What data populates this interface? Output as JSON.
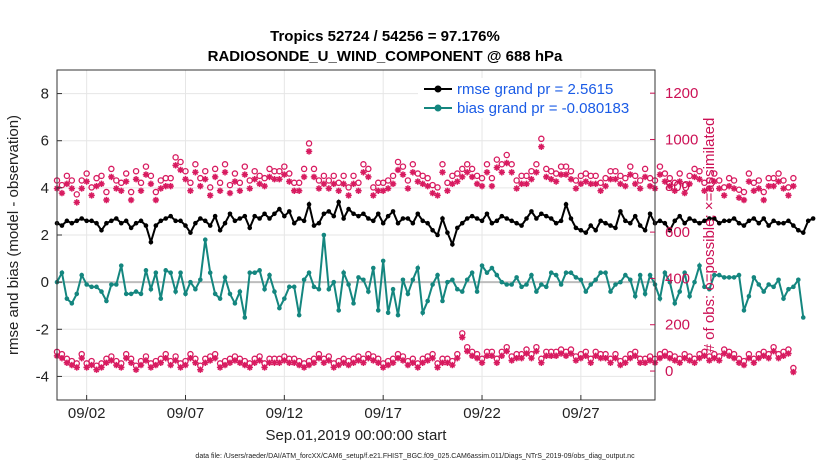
{
  "chart_data": {
    "type": "line",
    "title_line1": "Tropics 52724 / 54256 = 97.176%",
    "title_line2": "RADIOSONDE_U_WIND_COMPONENT @ 688 hPa",
    "xlabel": "Sep.01,2019 00:00:00 start",
    "ylabel_left": "rmse and bias (model - observation)",
    "ylabel_right": "# of obs: o=possible; ×=assimilated",
    "footnote": "data file: /Users/raeder/DAI/ATM_forcXX/CAM6_setup/f.e21.FHIST_BGC.f09_025.CAM6assim.011/Diags_NTrS_2019-09/obs_diag_output.nc",
    "x_range_days": [
      0.5,
      30.75
    ],
    "x_ticks": [
      {
        "day": 2,
        "label": "09/02"
      },
      {
        "day": 7,
        "label": "09/07"
      },
      {
        "day": 12,
        "label": "09/12"
      },
      {
        "day": 17,
        "label": "09/17"
      },
      {
        "day": 22,
        "label": "09/22"
      },
      {
        "day": 27,
        "label": "09/27"
      }
    ],
    "ylim_left": [
      -5,
      9
    ],
    "y_ticks_left": [
      -4,
      -2,
      0,
      2,
      4,
      6,
      8
    ],
    "ylim_right": [
      -125,
      1300
    ],
    "y_ticks_right": [
      0,
      200,
      400,
      600,
      800,
      1000,
      1200
    ],
    "x_start_day": 0.5,
    "x_step_days": 0.25,
    "series": [
      {
        "name": "rmse",
        "legend": "rmse grand pr = 2.5615",
        "color": "#000000",
        "marker": "circle",
        "values": [
          2.5,
          2.4,
          2.6,
          2.5,
          2.6,
          2.7,
          2.6,
          2.6,
          2.5,
          2.2,
          2.5,
          2.6,
          2.7,
          2.5,
          2.6,
          2.3,
          2.5,
          2.6,
          2.4,
          1.7,
          2.4,
          2.6,
          2.7,
          2.8,
          2.6,
          2.6,
          2.4,
          2.1,
          2.5,
          2.7,
          2.6,
          2.4,
          2.8,
          2.2,
          2.5,
          2.9,
          2.6,
          2.7,
          2.8,
          2.3,
          2.8,
          2.7,
          2.9,
          2.7,
          2.9,
          3.1,
          2.8,
          3.0,
          2.5,
          2.7,
          2.6,
          3.3,
          2.4,
          2.5,
          2.9,
          3.0,
          2.8,
          3.4,
          2.7,
          3.1,
          2.9,
          2.8,
          2.9,
          2.7,
          2.6,
          2.9,
          2.5,
          2.8,
          3.0,
          2.5,
          2.7,
          2.7,
          2.5,
          2.9,
          2.6,
          2.5,
          2.2,
          2.0,
          2.7,
          2.1,
          1.6,
          2.3,
          2.5,
          2.7,
          2.8,
          2.7,
          2.6,
          2.9,
          2.5,
          2.6,
          2.8,
          2.7,
          2.6,
          2.5,
          2.4,
          2.7,
          3.0,
          2.7,
          2.9,
          2.8,
          2.7,
          2.5,
          2.6,
          3.3,
          2.7,
          2.3,
          2.2,
          2.1,
          2.4,
          2.2,
          2.6,
          2.5,
          2.4,
          2.3,
          3.0,
          2.6,
          2.5,
          2.8,
          2.4,
          2.2,
          2.9,
          2.5,
          2.6,
          2.5,
          2.2,
          2.6,
          2.8,
          2.5,
          2.7,
          2.6,
          2.5,
          2.6,
          2.7,
          2.7,
          2.5,
          2.6,
          2.6,
          2.7,
          2.5,
          2.4,
          2.6,
          2.7,
          2.5,
          2.7,
          2.4,
          2.6,
          2.5,
          2.5,
          2.6,
          2.4,
          2.2,
          2.1,
          2.6,
          2.7
        ]
      },
      {
        "name": "bias",
        "legend": "bias grand pr = -0.080183",
        "color": "#14867f",
        "marker": "circle",
        "values": [
          0.0,
          0.4,
          -0.7,
          -0.9,
          -0.5,
          0.3,
          -0.1,
          -0.2,
          -0.2,
          -0.4,
          -0.8,
          -0.1,
          -0.1,
          0.7,
          -0.5,
          -0.5,
          -0.4,
          -0.5,
          0.5,
          -0.3,
          0.4,
          -0.7,
          0.5,
          0.4,
          -0.4,
          0.4,
          -0.5,
          0.0,
          -0.3,
          0.1,
          1.8,
          0.4,
          -0.5,
          -0.7,
          0.2,
          -0.5,
          -0.9,
          -0.4,
          -1.5,
          0.4,
          0.4,
          0.5,
          -0.3,
          0.3,
          -0.4,
          -1.1,
          -0.7,
          -0.2,
          -0.2,
          -1.4,
          0.1,
          0.4,
          -0.2,
          -0.3,
          2.0,
          -0.3,
          0.0,
          -1.2,
          0.4,
          -0.1,
          -0.9,
          0.2,
          0.1,
          -0.4,
          0.6,
          -1.2,
          0.9,
          -1.3,
          -0.3,
          -1.4,
          0.1,
          -0.5,
          0.1,
          0.6,
          -1.3,
          -0.8,
          -0.1,
          0.3,
          -0.8,
          0.0,
          0.1,
          -0.3,
          -0.4,
          0.1,
          0.4,
          -0.4,
          0.7,
          0.4,
          0.6,
          0.3,
          0.0,
          -0.1,
          -0.1,
          0.2,
          -0.2,
          -0.1,
          0.3,
          -0.4,
          -0.1,
          -0.2,
          0.4,
          0.3,
          -0.1,
          0.4,
          0.4,
          0.2,
          0.1,
          -0.4,
          -0.1,
          0.1,
          0.4,
          0.4,
          -0.4,
          -0.1,
          0.0,
          0.3,
          0.1,
          -0.6,
          0.3,
          -0.5,
          0.3,
          -0.1,
          -0.7,
          0.4,
          0.0,
          -0.9,
          -0.4,
          0.4,
          -0.6,
          0.0,
          0.7,
          -0.2,
          -0.3,
          0.3,
          0.3,
          0.2,
          0.2,
          0.2,
          0.3,
          -1.2,
          -0.6,
          0.2,
          -0.1,
          -0.4,
          -0.1,
          -0.2,
          0.1,
          -0.7,
          -0.3,
          -0.2,
          0.1,
          -1.5
        ]
      }
    ],
    "obs_possible": [
      810,
      790,
      830,
      810,
      750,
      810,
      840,
      780,
      820,
      830,
      760,
      860,
      810,
      800,
      840,
      760,
      850,
      800,
      870,
      830,
      760,
      810,
      820,
      820,
      910,
      890,
      850,
      800,
      880,
      820,
      850,
      780,
      860,
      800,
      880,
      790,
      840,
      800,
      870,
      810,
      850,
      830,
      820,
      860,
      850,
      850,
      870,
      840,
      800,
      800,
      860,
      970,
      860,
      810,
      830,
      810,
      830,
      800,
      830,
      780,
      830,
      800,
      880,
      860,
      780,
      800,
      800,
      810,
      830,
      890,
      870,
      810,
      880,
      840,
      830,
      820,
      790,
      780,
      880,
      800,
      830,
      840,
      860,
      880,
      860,
      830,
      820,
      880,
      820,
      900,
      880,
      920,
      880,
      810,
      830,
      830,
      850,
      880,
      990,
      860,
      850,
      840,
      870,
      870,
      850,
      810,
      830,
      840,
      830,
      830,
      800,
      820,
      850,
      850,
      830,
      820,
      870,
      830,
      810,
      860,
      820,
      810,
      870,
      840,
      820,
      800,
      840,
      790,
      830,
      860,
      850,
      800,
      810,
      840,
      810,
      780,
      820,
      810,
      770,
      760,
      840,
      800,
      810,
      760,
      820,
      820,
      840,
      810,
      780,
      820
    ],
    "obs_assimilated": [
      810,
      790,
      830,
      810,
      750,
      810,
      840,
      780,
      820,
      830,
      760,
      860,
      810,
      800,
      840,
      760,
      850,
      800,
      870,
      830,
      760,
      810,
      820,
      820,
      910,
      890,
      850,
      800,
      880,
      820,
      850,
      780,
      860,
      800,
      880,
      790,
      840,
      800,
      870,
      810,
      850,
      830,
      820,
      860,
      850,
      850,
      870,
      840,
      800,
      800,
      860,
      970,
      860,
      810,
      830,
      810,
      830,
      800,
      830,
      780,
      830,
      800,
      880,
      860,
      780,
      800,
      800,
      810,
      830,
      890,
      870,
      810,
      880,
      840,
      830,
      820,
      790,
      780,
      880,
      800,
      830,
      840,
      860,
      880,
      860,
      830,
      820,
      880,
      820,
      900,
      880,
      920,
      880,
      810,
      830,
      830,
      850,
      880,
      990,
      860,
      850,
      840,
      870,
      870,
      850,
      810,
      830,
      840,
      830,
      830,
      800,
      820,
      850,
      850,
      830,
      820,
      870,
      830,
      810,
      860,
      820,
      810,
      870,
      840,
      820,
      800,
      840,
      790,
      830,
      860,
      850,
      800,
      810,
      840,
      810,
      780,
      820,
      810,
      770,
      760,
      840,
      800,
      810,
      760,
      820,
      820,
      840,
      810,
      780,
      820
    ],
    "obs_low_possible": [
      70,
      60,
      40,
      30,
      20,
      60,
      20,
      30,
      10,
      20,
      40,
      50,
      30,
      20,
      60,
      40,
      10,
      30,
      50,
      20,
      30,
      40,
      60,
      30,
      50,
      20,
      30,
      60,
      40,
      10,
      40,
      50,
      60,
      20,
      30,
      40,
      50,
      40,
      30,
      20,
      40,
      50,
      20,
      40,
      40,
      40,
      50,
      40,
      40,
      30,
      20,
      30,
      40,
      60,
      40,
      50,
      20,
      30,
      40,
      30,
      40,
      50,
      40,
      60,
      50,
      40,
      20,
      30,
      40,
      60,
      50,
      30,
      40,
      20,
      40,
      50,
      60,
      20,
      40,
      40,
      30,
      60,
      150,
      90,
      70,
      60,
      40,
      70,
      70,
      40,
      70,
      90,
      50,
      60,
      60,
      80,
      60,
      90,
      40,
      70,
      70,
      70,
      80,
      70,
      80,
      50,
      60,
      70,
      40,
      70,
      60,
      60,
      40,
      60,
      30,
      40,
      60,
      70,
      40,
      40,
      50,
      40,
      60,
      70,
      60,
      50,
      40,
      60,
      50,
      40,
      60,
      70,
      50,
      60,
      50,
      80,
      70,
      60,
      40,
      30,
      60,
      40,
      60,
      70,
      60,
      90,
      60,
      70,
      80,
      0
    ]
  }
}
